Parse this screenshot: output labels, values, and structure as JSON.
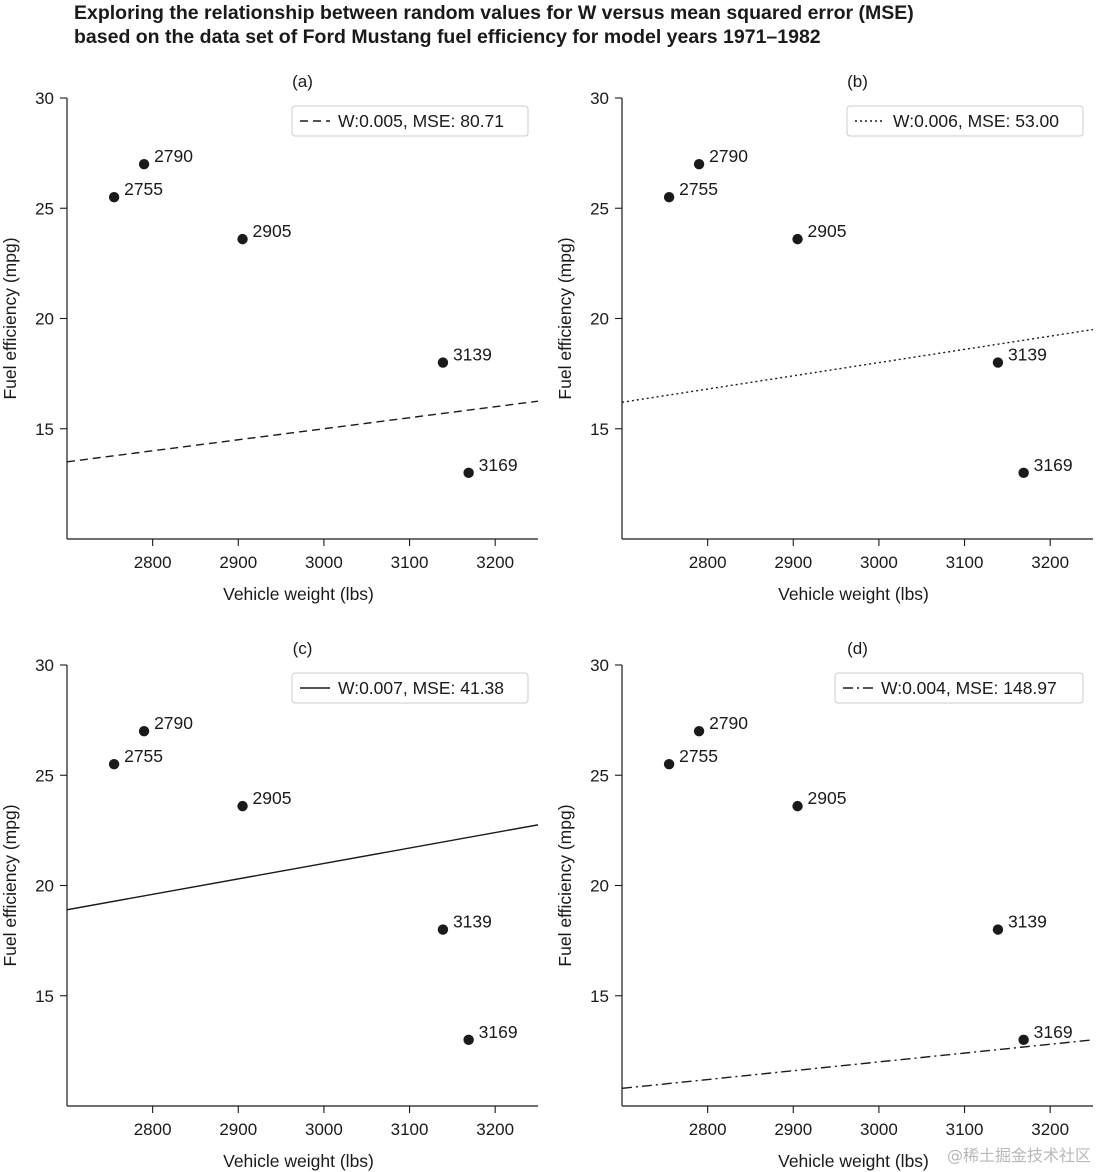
{
  "figure": {
    "title_line1": "Exploring the relationship between random values for W versus mean squared error (MSE)",
    "title_line2": "based on the data set of Ford Mustang fuel efficiency for model years 1971–1982",
    "watermark": "@稀土掘金技术社区"
  },
  "chart_data": [
    {
      "type": "scatter",
      "title": "(a)",
      "xlabel": "Vehicle weight (lbs)",
      "ylabel": "Fuel efficiency (mpg)",
      "xlim": [
        2700,
        3250
      ],
      "ylim": [
        10,
        30
      ],
      "xticks": [
        2800,
        2900,
        3000,
        3100,
        3200
      ],
      "yticks": [
        15,
        20,
        25,
        30
      ],
      "points": [
        {
          "x": 2755,
          "y": 25.5,
          "label": "2755"
        },
        {
          "x": 2790,
          "y": 27,
          "label": "2790"
        },
        {
          "x": 2905,
          "y": 23.6,
          "label": "2905"
        },
        {
          "x": 3139,
          "y": 18,
          "label": "3139"
        },
        {
          "x": 3169,
          "y": 13,
          "label": "3169"
        }
      ],
      "line": {
        "w": 0.005,
        "style": "dashed",
        "legend": "W:0.005, MSE: 80.71"
      },
      "legend_position": "top-right",
      "grid": false
    },
    {
      "type": "scatter",
      "title": "(b)",
      "xlabel": "Vehicle weight (lbs)",
      "ylabel": "Fuel efficiency (mpg)",
      "xlim": [
        2700,
        3250
      ],
      "ylim": [
        10,
        30
      ],
      "xticks": [
        2800,
        2900,
        3000,
        3100,
        3200
      ],
      "yticks": [
        15,
        20,
        25,
        30
      ],
      "points": [
        {
          "x": 2755,
          "y": 25.5,
          "label": "2755"
        },
        {
          "x": 2790,
          "y": 27,
          "label": "2790"
        },
        {
          "x": 2905,
          "y": 23.6,
          "label": "2905"
        },
        {
          "x": 3139,
          "y": 18,
          "label": "3139"
        },
        {
          "x": 3169,
          "y": 13,
          "label": "3169"
        }
      ],
      "line": {
        "w": 0.006,
        "style": "dotted",
        "legend": "W:0.006, MSE: 53.00"
      },
      "legend_position": "top-right",
      "grid": false
    },
    {
      "type": "scatter",
      "title": "(c)",
      "xlabel": "Vehicle weight (lbs)",
      "ylabel": "Fuel efficiency (mpg)",
      "xlim": [
        2700,
        3250
      ],
      "ylim": [
        10,
        30
      ],
      "xticks": [
        2800,
        2900,
        3000,
        3100,
        3200
      ],
      "yticks": [
        15,
        20,
        25,
        30
      ],
      "points": [
        {
          "x": 2755,
          "y": 25.5,
          "label": "2755"
        },
        {
          "x": 2790,
          "y": 27,
          "label": "2790"
        },
        {
          "x": 2905,
          "y": 23.6,
          "label": "2905"
        },
        {
          "x": 3139,
          "y": 18,
          "label": "3139"
        },
        {
          "x": 3169,
          "y": 13,
          "label": "3169"
        }
      ],
      "line": {
        "w": 0.007,
        "style": "solid",
        "legend": "W:0.007, MSE: 41.38"
      },
      "legend_position": "top-right",
      "grid": false
    },
    {
      "type": "scatter",
      "title": "(d)",
      "xlabel": "Vehicle weight (lbs)",
      "ylabel": "Fuel efficiency (mpg)",
      "xlim": [
        2700,
        3250
      ],
      "ylim": [
        10,
        30
      ],
      "xticks": [
        2800,
        2900,
        3000,
        3100,
        3200
      ],
      "yticks": [
        15,
        20,
        25,
        30
      ],
      "points": [
        {
          "x": 2755,
          "y": 25.5,
          "label": "2755"
        },
        {
          "x": 2790,
          "y": 27,
          "label": "2790"
        },
        {
          "x": 2905,
          "y": 23.6,
          "label": "2905"
        },
        {
          "x": 3139,
          "y": 18,
          "label": "3139"
        },
        {
          "x": 3169,
          "y": 13,
          "label": "3169"
        }
      ],
      "line": {
        "w": 0.004,
        "style": "dashdot",
        "legend": "W:0.004, MSE: 148.97"
      },
      "legend_position": "top-right",
      "grid": false
    }
  ],
  "colors": {
    "ink": "#1a1a1a",
    "watermark": "#b8b8b8",
    "legend_border": "#cccccc"
  }
}
